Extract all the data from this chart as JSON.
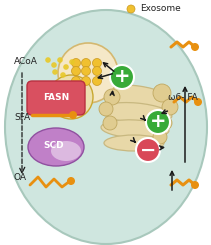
{
  "cell_color": "#cfe6df",
  "cell_border": "#a8c8bc",
  "exosome_big_color": "#f5e8c8",
  "exosome_big_border": "#d4b870",
  "exosome_sm_color": "#ede0b0",
  "exosome_sm_border": "#c8a830",
  "exosome_dot_color": "#f0c030",
  "exosome_dot_border": "#c89820",
  "fasn_color": "#d95060",
  "fasn_border": "#b83040",
  "scd_color": "#c080c8",
  "scd_border": "#9050a0",
  "golgi_color": "#e8d8a8",
  "golgi_border": "#c8b880",
  "golgi_vesicle_color": "#e0cc90",
  "golgi_vesicle_border": "#c0a860",
  "orange_color": "#e89010",
  "plus_color": "#38aa38",
  "minus_color": "#d94858",
  "arrow_color": "#1a1a1a",
  "text_color": "#222222",
  "white": "#ffffff",
  "acoa_squiggle_color": "#e8c828",
  "text_exosome": "Exosome",
  "text_acoa": "ACoA",
  "text_fasn": "FASN",
  "text_sfa": "SFA",
  "text_scd": "SCD",
  "text_oa": "OA",
  "text_omega": "ω6- FA"
}
